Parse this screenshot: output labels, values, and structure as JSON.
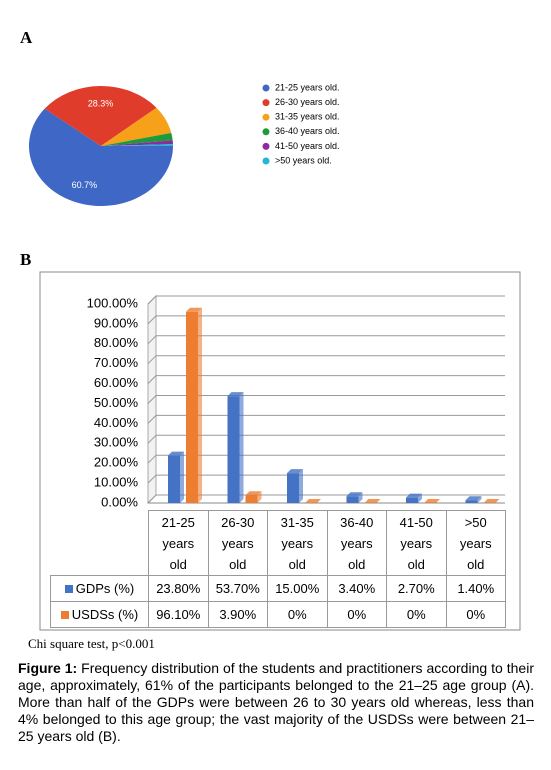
{
  "panel_labels": [
    "A",
    "B"
  ],
  "chart_data": [
    {
      "type": "pie",
      "categories": [
        "21-25 years old.",
        "26-30 years old.",
        "31-35 years old.",
        "36-40 years old.",
        "41-50 years old.",
        ">50 years old."
      ],
      "values": [
        60.7,
        28.3,
        7.5,
        2,
        1,
        0.5
      ],
      "value_labels": [
        "60.7%",
        "28.3%",
        null,
        null,
        null,
        null
      ],
      "colors": [
        "#3f67c6",
        "#e03c2b",
        "#f7a11a",
        "#1e9a3a",
        "#8b2c9e",
        "#25b5d8"
      ]
    },
    {
      "type": "bar",
      "categories": [
        "21-25 years old",
        "26-30 years old",
        "31-35 years old",
        "36-40 years old",
        "41-50 years old",
        ">50 years old"
      ],
      "series": [
        {
          "name": "GDPs (%)",
          "color": "#4472c4",
          "values": [
            23.8,
            53.7,
            15,
            3.4,
            2.7,
            1.4
          ],
          "value_labels": [
            "23.80%",
            "53.70%",
            "15.00%",
            "3.40%",
            "2.70%",
            "1.40%"
          ]
        },
        {
          "name": "USDSs (%)",
          "color": "#ed7d31",
          "values": [
            96.1,
            3.9,
            0,
            0,
            0,
            0
          ],
          "value_labels": [
            "96.10%",
            "3.90%",
            "0%",
            "0%",
            "0%",
            "0%"
          ]
        }
      ],
      "ylim": [
        0,
        100
      ],
      "yticks": [
        {
          "value": 0,
          "label": "0.00%"
        },
        {
          "value": 10,
          "label": "10.00%"
        },
        {
          "value": 20,
          "label": "20.00%"
        },
        {
          "value": 30,
          "label": "30.00%"
        },
        {
          "value": 40,
          "label": "40.00%"
        },
        {
          "value": 50,
          "label": "50.00%"
        },
        {
          "value": 60,
          "label": "60.00%"
        },
        {
          "value": 70,
          "label": "70.00%"
        },
        {
          "value": 80,
          "label": "80.00%"
        },
        {
          "value": 90,
          "label": "90.00%"
        },
        {
          "value": 100,
          "label": "100.00%"
        }
      ],
      "grid": true
    }
  ],
  "note": "Chi square test, p<0.001",
  "caption": {
    "label": "Figure 1:",
    "text": "Frequency distribution of the students and practitioners according to their age, approximately, 61% of the participants belonged to the 21–25 age group (A). More than half of the GDPs were between 26 to 30 years old whereas, less than 4% belonged to this age group; the vast majority of the USDSs were between 21–25 years old (B)."
  }
}
